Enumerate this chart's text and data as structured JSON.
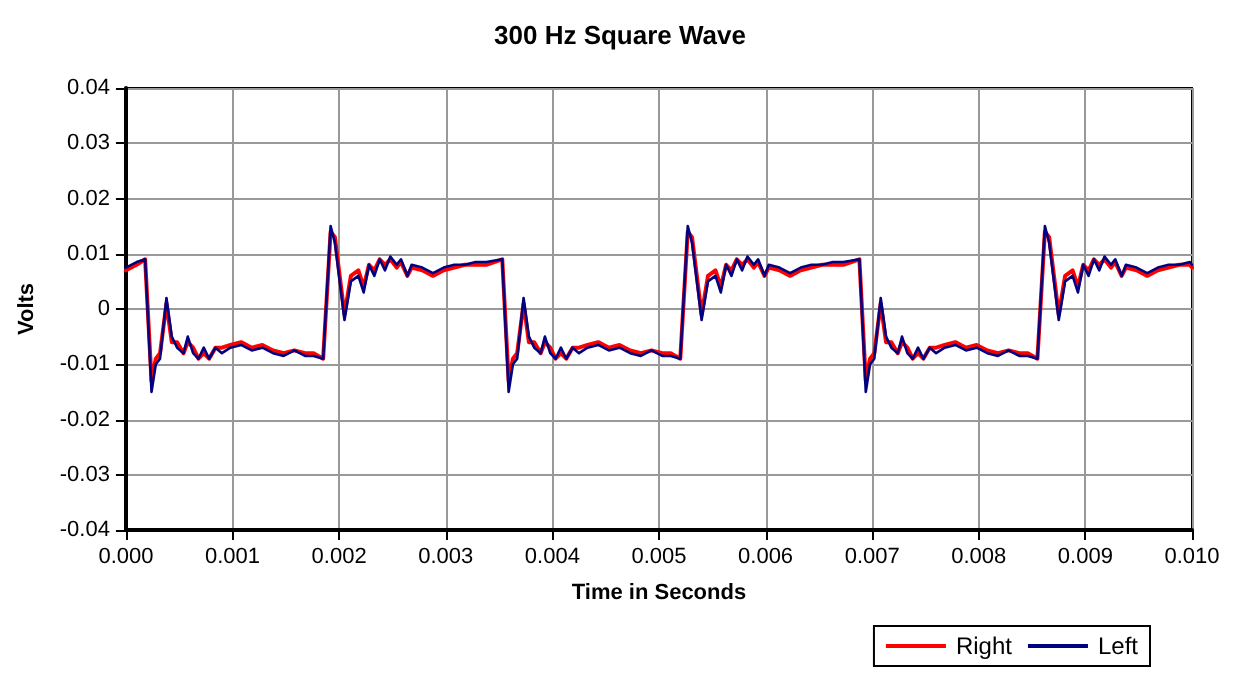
{
  "chart_data": {
    "type": "line",
    "title": "300 Hz Square Wave",
    "xlabel": "Time in Seconds",
    "ylabel": "Volts",
    "x": [
      0,
      0.0001,
      0.00018,
      0.00024,
      0.00028,
      0.00032,
      0.00038,
      0.00043,
      0.00048,
      0.00054,
      0.00058,
      0.00063,
      0.00068,
      0.00073,
      0.00078,
      0.00084,
      0.0009,
      0.00098,
      0.00108,
      0.00118,
      0.00128,
      0.00138,
      0.00148,
      0.00158,
      0.00168,
      0.00176,
      0.00185,
      0.00192,
      0.00196,
      0.00205,
      0.00211,
      0.00218,
      0.00223,
      0.00228,
      0.00233,
      0.00238,
      0.00243,
      0.00248,
      0.00254,
      0.00258,
      0.00264,
      0.00268,
      0.00278,
      0.00288,
      0.00298,
      0.00308,
      0.00318,
      0.00328,
      0.00338,
      0.00353,
      0.00359,
      0.00363,
      0.00367,
      0.00373,
      0.00378,
      0.00383,
      0.00389,
      0.00393,
      0.00398,
      0.00403,
      0.00408,
      0.00413,
      0.00419,
      0.00425,
      0.00433,
      0.00443,
      0.00453,
      0.00463,
      0.00473,
      0.00483,
      0.00493,
      0.00503,
      0.00511,
      0.0052,
      0.00527,
      0.00531,
      0.0054,
      0.00546,
      0.00553,
      0.00558,
      0.00563,
      0.00568,
      0.00573,
      0.00578,
      0.00583,
      0.00589,
      0.00593,
      0.00599,
      0.00603,
      0.00613,
      0.00623,
      0.00633,
      0.00643,
      0.00653,
      0.00663,
      0.00673,
      0.00688,
      0.00694,
      0.00698,
      0.00702,
      0.00708,
      0.00713,
      0.00718,
      0.00724,
      0.00728,
      0.00733,
      0.00738,
      0.00743,
      0.00748,
      0.00754,
      0.0076,
      0.00768,
      0.00778,
      0.00788,
      0.00798,
      0.00808,
      0.00818,
      0.00828,
      0.00838,
      0.00846,
      0.00855,
      0.00862,
      0.00866,
      0.00875,
      0.00881,
      0.00888,
      0.00893,
      0.00898,
      0.00903,
      0.00908,
      0.00913,
      0.00918,
      0.00924,
      0.00928,
      0.00934,
      0.00938,
      0.00948,
      0.00958,
      0.00968,
      0.00978,
      0.00988,
      0.00998,
      0.01
    ],
    "series": [
      {
        "name": "Right",
        "color": "#ff0000",
        "values": [
          0.007,
          0.008,
          0.009,
          -0.013,
          -0.009,
          -0.008,
          0.001,
          -0.006,
          -0.006,
          -0.008,
          -0.006,
          -0.007,
          -0.009,
          -0.008,
          -0.009,
          -0.007,
          -0.007,
          -0.0065,
          -0.006,
          -0.007,
          -0.0065,
          -0.0075,
          -0.008,
          -0.0075,
          -0.008,
          -0.008,
          -0.009,
          0.014,
          0.013,
          -0.001,
          0.006,
          0.007,
          0.004,
          0.008,
          0.007,
          0.009,
          0.008,
          0.009,
          0.0075,
          0.0085,
          0.006,
          0.0075,
          0.007,
          0.006,
          0.007,
          0.0075,
          0.008,
          0.008,
          0.008,
          0.009,
          -0.013,
          -0.009,
          -0.008,
          0.001,
          -0.006,
          -0.006,
          -0.008,
          -0.006,
          -0.007,
          -0.009,
          -0.008,
          -0.009,
          -0.007,
          -0.007,
          -0.0065,
          -0.006,
          -0.007,
          -0.0065,
          -0.0075,
          -0.008,
          -0.0075,
          -0.008,
          -0.008,
          -0.009,
          0.014,
          0.013,
          -0.001,
          0.006,
          0.007,
          0.004,
          0.008,
          0.007,
          0.009,
          0.008,
          0.009,
          0.0075,
          0.0085,
          0.006,
          0.0075,
          0.007,
          0.006,
          0.007,
          0.0075,
          0.008,
          0.008,
          0.008,
          0.009,
          -0.013,
          -0.009,
          -0.008,
          0.001,
          -0.006,
          -0.006,
          -0.008,
          -0.006,
          -0.007,
          -0.009,
          -0.008,
          -0.009,
          -0.007,
          -0.007,
          -0.0065,
          -0.006,
          -0.007,
          -0.0065,
          -0.0075,
          -0.008,
          -0.0075,
          -0.008,
          -0.008,
          -0.009,
          0.014,
          0.013,
          -0.001,
          0.006,
          0.007,
          0.004,
          0.008,
          0.007,
          0.009,
          0.008,
          0.009,
          0.0075,
          0.0085,
          0.006,
          0.0075,
          0.007,
          0.006,
          0.007,
          0.0075,
          0.008,
          0.008,
          0.0075
        ]
      },
      {
        "name": "Left",
        "color": "#000080",
        "values": [
          0.0075,
          0.0085,
          0.009,
          -0.015,
          -0.01,
          -0.009,
          0.002,
          -0.005,
          -0.007,
          -0.008,
          -0.005,
          -0.008,
          -0.009,
          -0.007,
          -0.009,
          -0.007,
          -0.008,
          -0.007,
          -0.0065,
          -0.0075,
          -0.007,
          -0.008,
          -0.0085,
          -0.0075,
          -0.0085,
          -0.0085,
          -0.009,
          0.015,
          0.012,
          -0.002,
          0.005,
          0.006,
          0.003,
          0.008,
          0.006,
          0.009,
          0.007,
          0.0095,
          0.008,
          0.009,
          0.006,
          0.008,
          0.0075,
          0.0065,
          0.0075,
          0.008,
          0.008,
          0.0085,
          0.0085,
          0.009,
          -0.015,
          -0.01,
          -0.009,
          0.002,
          -0.005,
          -0.007,
          -0.008,
          -0.005,
          -0.008,
          -0.009,
          -0.007,
          -0.009,
          -0.007,
          -0.008,
          -0.007,
          -0.0065,
          -0.0075,
          -0.007,
          -0.008,
          -0.0085,
          -0.0075,
          -0.0085,
          -0.0085,
          -0.009,
          0.015,
          0.012,
          -0.002,
          0.005,
          0.006,
          0.003,
          0.008,
          0.006,
          0.009,
          0.007,
          0.0095,
          0.008,
          0.009,
          0.006,
          0.008,
          0.0075,
          0.0065,
          0.0075,
          0.008,
          0.008,
          0.0085,
          0.0085,
          0.009,
          -0.015,
          -0.01,
          -0.009,
          0.002,
          -0.005,
          -0.007,
          -0.008,
          -0.005,
          -0.008,
          -0.009,
          -0.007,
          -0.009,
          -0.007,
          -0.008,
          -0.007,
          -0.0065,
          -0.0075,
          -0.007,
          -0.008,
          -0.0085,
          -0.0075,
          -0.0085,
          -0.0085,
          -0.009,
          0.015,
          0.012,
          -0.002,
          0.005,
          0.006,
          0.003,
          0.008,
          0.006,
          0.009,
          0.007,
          0.0095,
          0.008,
          0.009,
          0.006,
          0.008,
          0.0075,
          0.0065,
          0.0075,
          0.008,
          0.008,
          0.0085,
          0.008
        ]
      }
    ],
    "xlim": [
      0,
      0.01
    ],
    "xticks": [
      {
        "value": 0,
        "label": "0.000"
      },
      {
        "value": 0.001,
        "label": "0.001"
      },
      {
        "value": 0.002,
        "label": "0.002"
      },
      {
        "value": 0.003,
        "label": "0.003"
      },
      {
        "value": 0.004,
        "label": "0.004"
      },
      {
        "value": 0.005,
        "label": "0.005"
      },
      {
        "value": 0.006,
        "label": "0.006"
      },
      {
        "value": 0.007,
        "label": "0.007"
      },
      {
        "value": 0.008,
        "label": "0.008"
      },
      {
        "value": 0.009,
        "label": "0.009"
      },
      {
        "value": 0.01,
        "label": "0.010"
      }
    ],
    "ylim": [
      -0.04,
      0.04
    ],
    "yticks": [
      -0.04,
      -0.03,
      -0.02,
      -0.01,
      0,
      0.01,
      0.02,
      0.03,
      0.04
    ],
    "grid": true,
    "legend": "bottom right",
    "marker": "none",
    "line_style": "solid"
  }
}
